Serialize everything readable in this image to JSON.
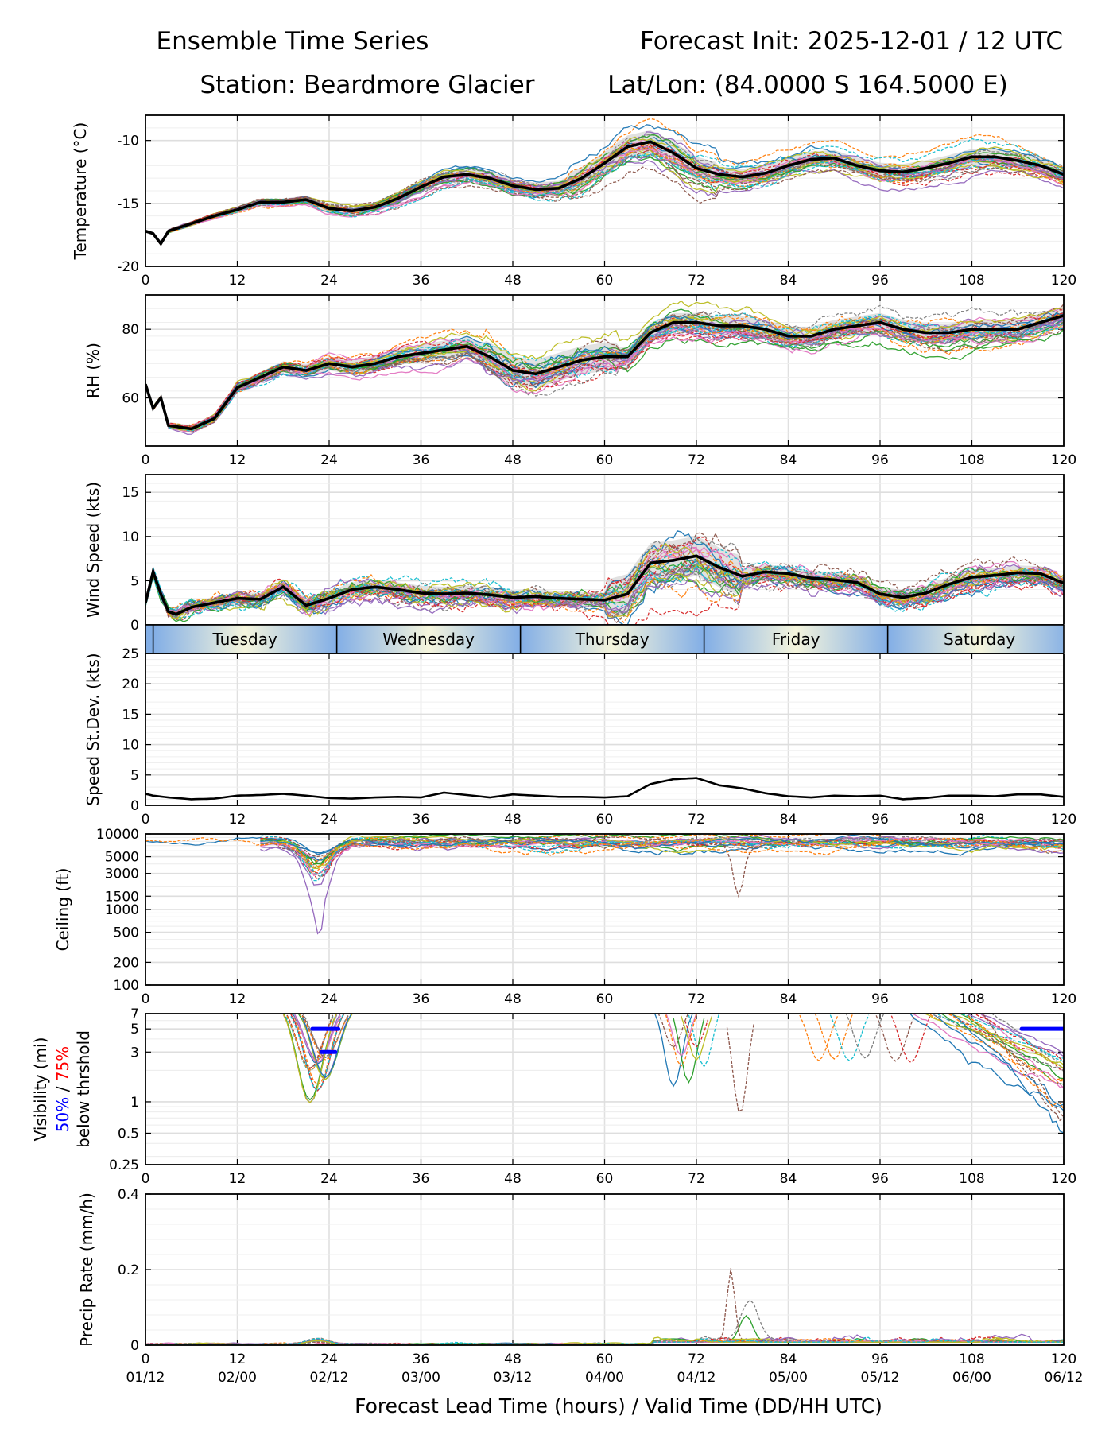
{
  "header": {
    "title_left": "Ensemble Time Series",
    "title_right": "Forecast Init: 2025-12-01 / 12 UTC",
    "station": "Station: Beardmore Glacier",
    "latlon": "Lat/Lon: (84.0000 S 164.5000 E)"
  },
  "x_axis": {
    "xlabel": "Forecast Lead Time (hours) / Valid Time (DD/HH UTC)",
    "lead_ticks": [
      0,
      12,
      24,
      36,
      48,
      60,
      72,
      84,
      96,
      108,
      120
    ],
    "valid_labels": [
      "01/12",
      "02/00",
      "02/12",
      "03/00",
      "03/12",
      "04/00",
      "04/12",
      "05/00",
      "05/12",
      "06/00",
      "06/12"
    ],
    "xlim": [
      0,
      120
    ]
  },
  "day_strip": {
    "days": [
      "Tuesday",
      "Wednesday",
      "Thursday",
      "Friday",
      "Saturday"
    ],
    "boundaries_hours": [
      1,
      25,
      49,
      73,
      97,
      121
    ]
  },
  "ensemble_colors": [
    "#1f77b4",
    "#ff7f0e",
    "#2ca02c",
    "#d62728",
    "#9467bd",
    "#8c564b",
    "#e377c2",
    "#7f7f7f",
    "#bcbd22",
    "#17becf"
  ],
  "chart_data": [
    {
      "id": "temperature",
      "type": "line",
      "ylabel": "Temperature (°C)",
      "ylim": [
        -20,
        -8
      ],
      "yticks": [
        -20,
        -15,
        -10
      ],
      "members": 30,
      "mean": {
        "x": [
          0,
          1,
          2,
          3,
          6,
          9,
          12,
          15,
          18,
          21,
          24,
          27,
          30,
          33,
          36,
          39,
          42,
          45,
          48,
          51,
          54,
          57,
          60,
          63,
          66,
          69,
          72,
          75,
          78,
          81,
          84,
          87,
          90,
          93,
          96,
          99,
          102,
          105,
          108,
          111,
          114,
          117,
          120
        ],
        "y": [
          -17.2,
          -17.4,
          -18.2,
          -17.2,
          -16.6,
          -16.0,
          -15.5,
          -14.9,
          -14.9,
          -14.7,
          -15.4,
          -15.6,
          -15.3,
          -14.6,
          -13.7,
          -12.9,
          -12.7,
          -13.0,
          -13.6,
          -13.9,
          -13.8,
          -13.0,
          -11.8,
          -10.5,
          -10.1,
          -11.0,
          -12.2,
          -12.7,
          -12.9,
          -12.6,
          -12.0,
          -11.5,
          -11.4,
          -12.0,
          -12.4,
          -12.5,
          -12.2,
          -11.8,
          -11.3,
          -11.3,
          -11.6,
          -12.0,
          -12.7
        ]
      }
    },
    {
      "id": "rh",
      "type": "line",
      "ylabel": "RH (%)",
      "ylim": [
        46,
        90
      ],
      "yticks": [
        60,
        80
      ],
      "members": 30,
      "mean": {
        "x": [
          0,
          1,
          2,
          3,
          6,
          9,
          12,
          15,
          18,
          21,
          24,
          27,
          30,
          33,
          36,
          39,
          42,
          45,
          48,
          51,
          54,
          57,
          60,
          63,
          66,
          69,
          72,
          75,
          78,
          81,
          84,
          87,
          90,
          93,
          96,
          99,
          102,
          105,
          108,
          111,
          114,
          117,
          120
        ],
        "y": [
          64,
          57,
          60,
          52,
          51,
          54,
          63,
          66,
          69,
          68,
          70,
          69,
          70,
          72,
          73,
          74,
          75,
          72,
          68,
          67,
          69,
          71,
          72,
          72,
          79,
          82,
          82,
          81,
          81,
          80,
          78,
          78,
          80,
          81,
          82,
          80,
          79,
          79,
          80,
          80,
          80,
          82,
          84
        ]
      }
    },
    {
      "id": "wind_speed",
      "type": "line",
      "ylabel": "Wind Speed (kts)",
      "ylim": [
        0,
        17
      ],
      "yticks": [
        0,
        5,
        10,
        15
      ],
      "members": 30,
      "mean": {
        "x": [
          0,
          1,
          2,
          3,
          4,
          6,
          9,
          12,
          15,
          18,
          21,
          24,
          27,
          30,
          33,
          36,
          39,
          42,
          45,
          48,
          51,
          54,
          57,
          60,
          63,
          66,
          69,
          72,
          75,
          78,
          81,
          84,
          87,
          90,
          93,
          96,
          99,
          102,
          105,
          108,
          111,
          114,
          117,
          120
        ],
        "y": [
          2.5,
          6.0,
          3.5,
          1.5,
          1.2,
          2.0,
          2.5,
          3.0,
          2.9,
          4.3,
          2.2,
          3.0,
          4.0,
          4.3,
          4.0,
          3.6,
          3.5,
          3.6,
          3.4,
          3.1,
          3.2,
          3.0,
          2.9,
          2.8,
          3.5,
          7.0,
          7.3,
          7.8,
          6.5,
          5.5,
          6.0,
          5.8,
          5.3,
          5.1,
          4.8,
          3.5,
          3.1,
          3.6,
          4.6,
          5.4,
          5.6,
          5.9,
          5.8,
          4.7
        ]
      }
    },
    {
      "id": "speed_stdev",
      "type": "line",
      "ylabel": "Speed St.Dev. (kts)",
      "ylim": [
        0,
        25
      ],
      "yticks": [
        0,
        5,
        10,
        15,
        20,
        25
      ],
      "series": {
        "x": [
          0,
          1,
          3,
          6,
          9,
          12,
          15,
          18,
          21,
          24,
          27,
          30,
          33,
          36,
          39,
          42,
          45,
          48,
          51,
          54,
          57,
          60,
          63,
          66,
          69,
          72,
          75,
          78,
          81,
          84,
          87,
          90,
          93,
          96,
          99,
          102,
          105,
          108,
          111,
          114,
          117,
          120
        ],
        "y": [
          1.9,
          1.6,
          1.3,
          1.0,
          1.1,
          1.6,
          1.7,
          1.9,
          1.6,
          1.2,
          1.1,
          1.3,
          1.4,
          1.3,
          2.1,
          1.7,
          1.3,
          1.8,
          1.6,
          1.4,
          1.4,
          1.3,
          1.5,
          3.5,
          4.3,
          4.5,
          3.3,
          2.8,
          2.0,
          1.5,
          1.3,
          1.6,
          1.5,
          1.6,
          1.0,
          1.2,
          1.6,
          1.6,
          1.5,
          1.8,
          1.8,
          1.4
        ]
      }
    },
    {
      "id": "ceiling",
      "type": "line",
      "scale": "log",
      "ylabel": "Ceiling (ft)",
      "ylim": [
        100,
        10000
      ],
      "yticks": [
        100,
        200,
        500,
        1000,
        1500,
        3000,
        5000,
        10000
      ],
      "members": 22
    },
    {
      "id": "visibility",
      "type": "line",
      "scale": "log",
      "ylabel": "Visibility (mi)",
      "ylabel_line2_blue": "50%",
      "ylabel_line2_sep": " / ",
      "ylabel_line2_red": "75%",
      "ylabel_line3": "below thrshold",
      "ylim": [
        0.25,
        7
      ],
      "yticks": [
        0.25,
        0.5,
        1,
        3,
        5,
        7
      ],
      "members": 22,
      "threshold_50": [
        {
          "x0": 21.8,
          "x1": 25.2,
          "y": 5
        },
        {
          "x0": 23.0,
          "x1": 24.8,
          "y": 3
        },
        {
          "x0": 114.5,
          "x1": 120,
          "y": 5
        }
      ]
    },
    {
      "id": "precip",
      "type": "line",
      "ylabel": "Precip Rate (mm/h)",
      "ylim": [
        0,
        0.4
      ],
      "yticks": [
        0.0,
        0.2,
        0.4
      ],
      "members": 20
    }
  ]
}
